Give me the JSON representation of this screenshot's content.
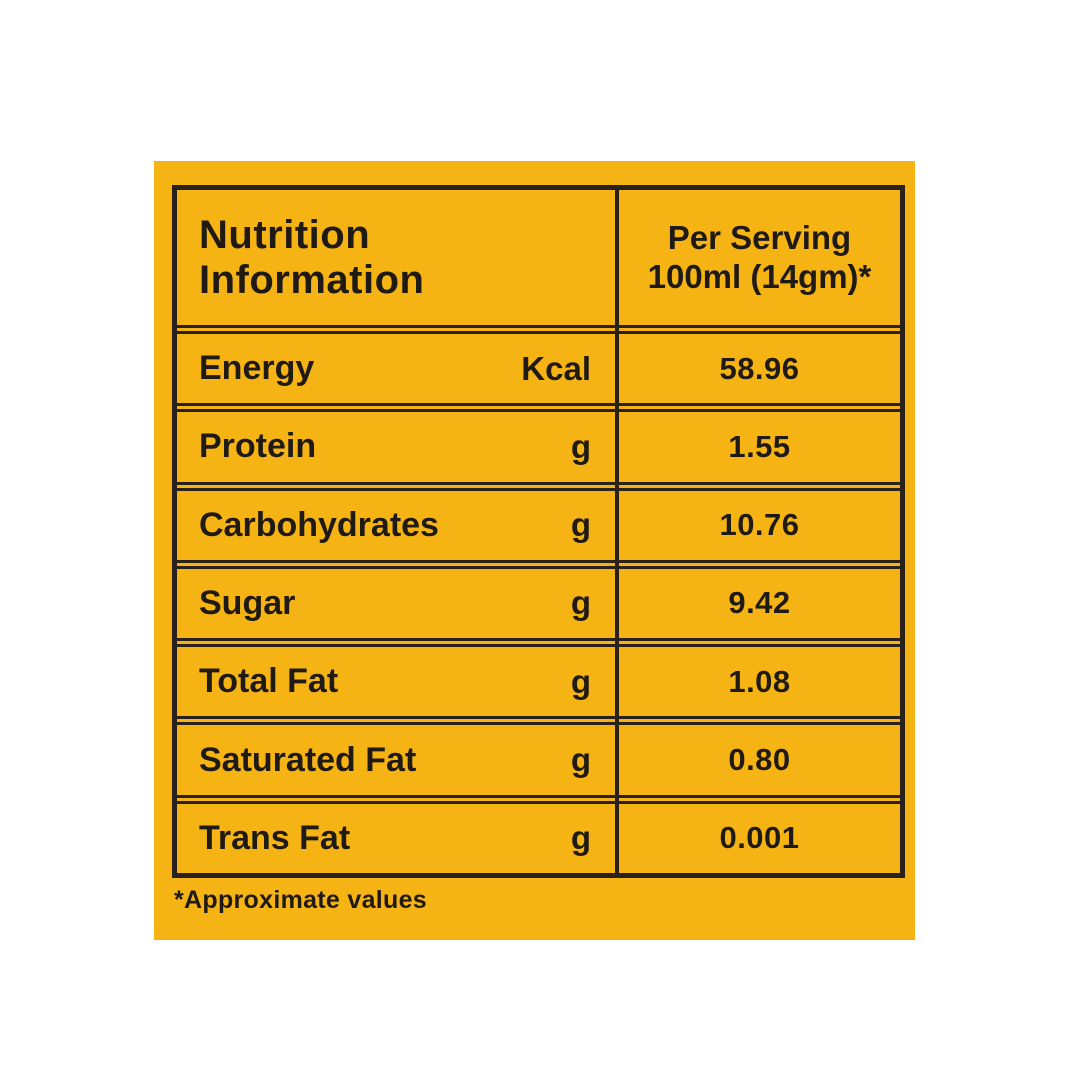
{
  "label": {
    "header": {
      "title": "Nutrition Information",
      "serving_line1": "Per Serving",
      "serving_line2": "100ml (14gm)*"
    },
    "rows": [
      {
        "name": "Energy",
        "unit": "Kcal",
        "value": "58.96"
      },
      {
        "name": "Protein",
        "unit": "g",
        "value": "1.55"
      },
      {
        "name": "Carbohydrates",
        "unit": "g",
        "value": "10.76"
      },
      {
        "name": "Sugar",
        "unit": "g",
        "value": "9.42"
      },
      {
        "name": "Total Fat",
        "unit": "g",
        "value": "1.08"
      },
      {
        "name": "Saturated Fat",
        "unit": "g",
        "value": "0.80"
      },
      {
        "name": "Trans Fat",
        "unit": "g",
        "value": "0.001"
      }
    ],
    "footnote": "*Approximate values",
    "colors": {
      "background": "#F6B414",
      "border": "#2A221A",
      "text": "#201A14",
      "page_background": "#FFFFFF"
    }
  }
}
